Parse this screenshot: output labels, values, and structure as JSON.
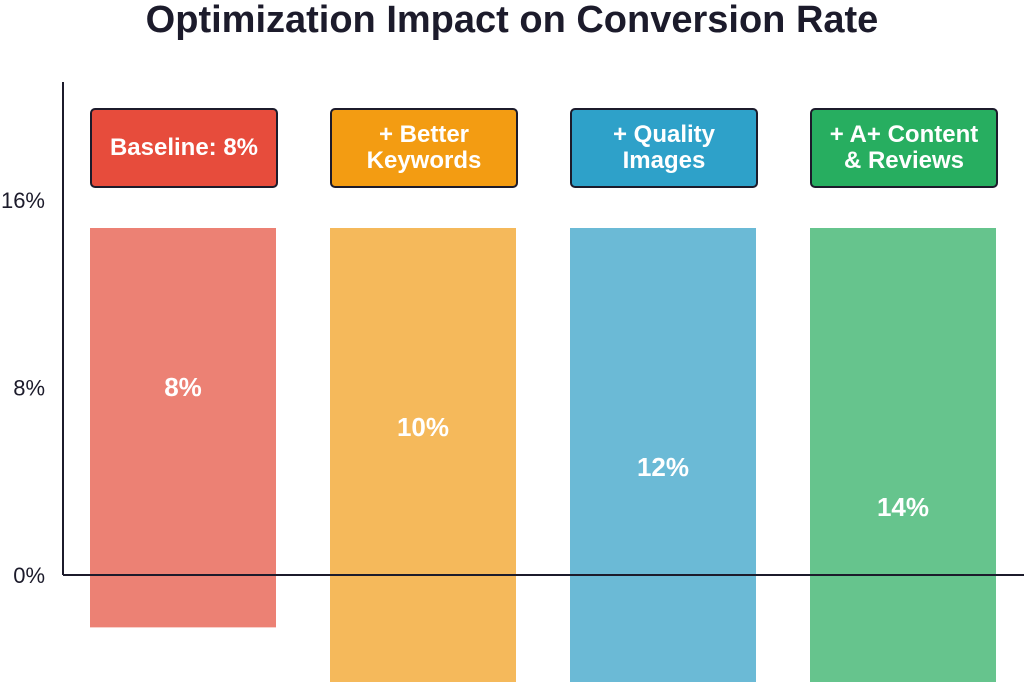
{
  "chart_data": {
    "type": "bar",
    "title": "Optimization Impact on Conversion Rate",
    "categories": [
      "Baseline: 8%",
      "+ Better\nKeywords",
      "+ Quality\nImages",
      "+ A+ Content\n& Reviews"
    ],
    "values": [
      8,
      10,
      12,
      14
    ],
    "value_labels": [
      "8%",
      "10%",
      "12%",
      "14%"
    ],
    "y_ticks": [
      {
        "value": 0,
        "label": "0%"
      },
      {
        "value": 8,
        "label": "8%"
      },
      {
        "value": 16,
        "label": "16%"
      }
    ],
    "ylim": [
      0,
      16
    ],
    "xlabel": "",
    "ylabel": "",
    "grid": false,
    "colors": {
      "label_boxes": [
        "#e74c3c",
        "#f39c12",
        "#2ea1c9",
        "#27ae60"
      ],
      "bars": [
        "#ec8174",
        "#f5b95b",
        "#6bbad6",
        "#66c48d"
      ],
      "text": "#1c1b2b"
    }
  }
}
